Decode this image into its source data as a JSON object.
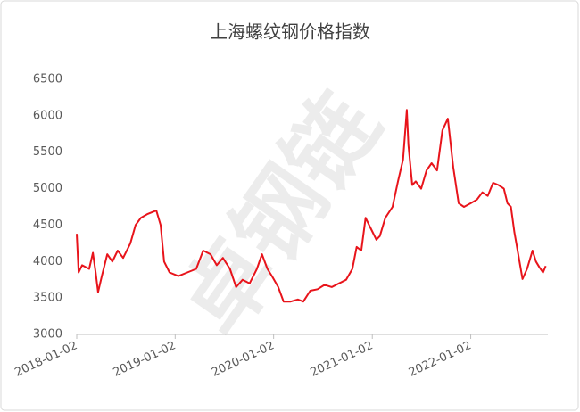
{
  "chart_data": {
    "type": "line",
    "title": "上海螺纹钢价格指数",
    "watermark": "卓钢链",
    "color": "#e8141b",
    "x": [
      "2018-01-02",
      "2018-01-09",
      "2018-01-22",
      "2018-02-17",
      "2018-03-03",
      "2018-03-13",
      "2018-03-22",
      "2018-04-05",
      "2018-04-25",
      "2018-05-14",
      "2018-06-03",
      "2018-06-23",
      "2018-07-20",
      "2018-08-08",
      "2018-08-28",
      "2018-09-20",
      "2018-10-24",
      "2018-11-09",
      "2018-11-22",
      "2018-12-12",
      "2019-01-14",
      "2019-02-16",
      "2019-03-21",
      "2019-04-16",
      "2019-05-13",
      "2019-06-05",
      "2019-06-28",
      "2019-07-24",
      "2019-08-16",
      "2019-09-09",
      "2019-10-05",
      "2019-11-01",
      "2019-11-20",
      "2019-12-10",
      "2019-12-27",
      "2020-01-19",
      "2020-02-08",
      "2020-03-05",
      "2020-04-01",
      "2020-04-21",
      "2020-05-17",
      "2020-06-13",
      "2020-07-09",
      "2020-08-05",
      "2020-08-31",
      "2020-09-27",
      "2020-10-20",
      "2020-11-05",
      "2020-11-22",
      "2020-12-08",
      "2020-12-28",
      "2021-01-17",
      "2021-01-30",
      "2021-02-19",
      "2021-03-18",
      "2021-04-07",
      "2021-04-26",
      "2021-05-10",
      "2021-05-16",
      "2021-05-30",
      "2021-06-12",
      "2021-07-02",
      "2021-07-22",
      "2021-08-10",
      "2021-08-30",
      "2021-09-19",
      "2021-10-09",
      "2021-10-29",
      "2021-11-18",
      "2021-12-08",
      "2022-01-02",
      "2022-01-25",
      "2022-02-14",
      "2022-03-06",
      "2022-03-26",
      "2022-04-15",
      "2022-05-05",
      "2022-05-18",
      "2022-05-31",
      "2022-06-13",
      "2022-06-27",
      "2022-07-13",
      "2022-07-30",
      "2022-08-19",
      "2022-09-01",
      "2022-09-14",
      "2022-09-27",
      "2022-10-07"
    ],
    "values": [
      4380,
      3850,
      3950,
      3900,
      4120,
      3850,
      3580,
      3800,
      4100,
      4000,
      4150,
      4050,
      4250,
      4500,
      4600,
      4650,
      4700,
      4500,
      4000,
      3850,
      3800,
      3850,
      3900,
      4150,
      4100,
      3950,
      4050,
      3900,
      3650,
      3750,
      3700,
      3900,
      4100,
      3900,
      3800,
      3650,
      3450,
      3450,
      3480,
      3450,
      3600,
      3620,
      3680,
      3650,
      3700,
      3750,
      3900,
      4200,
      4150,
      4600,
      4450,
      4300,
      4350,
      4600,
      4750,
      5100,
      5400,
      6080,
      5600,
      5050,
      5100,
      5000,
      5250,
      5350,
      5250,
      5800,
      5960,
      5300,
      4800,
      4750,
      4800,
      4850,
      4950,
      4900,
      5080,
      5050,
      5000,
      4800,
      4750,
      4400,
      4100,
      3760,
      3900,
      4150,
      4000,
      3920,
      3850,
      3940
    ],
    "xlim": [
      "2018-01-02",
      "2022-10-15"
    ],
    "xticks": [
      "2018-01-02",
      "2019-01-02",
      "2020-01-02",
      "2021-01-02",
      "2022-01-02"
    ],
    "ylim": [
      3000,
      6500
    ],
    "yticks": [
      3000,
      3500,
      4000,
      4500,
      5000,
      5500,
      6000,
      6500
    ],
    "grid": false
  }
}
